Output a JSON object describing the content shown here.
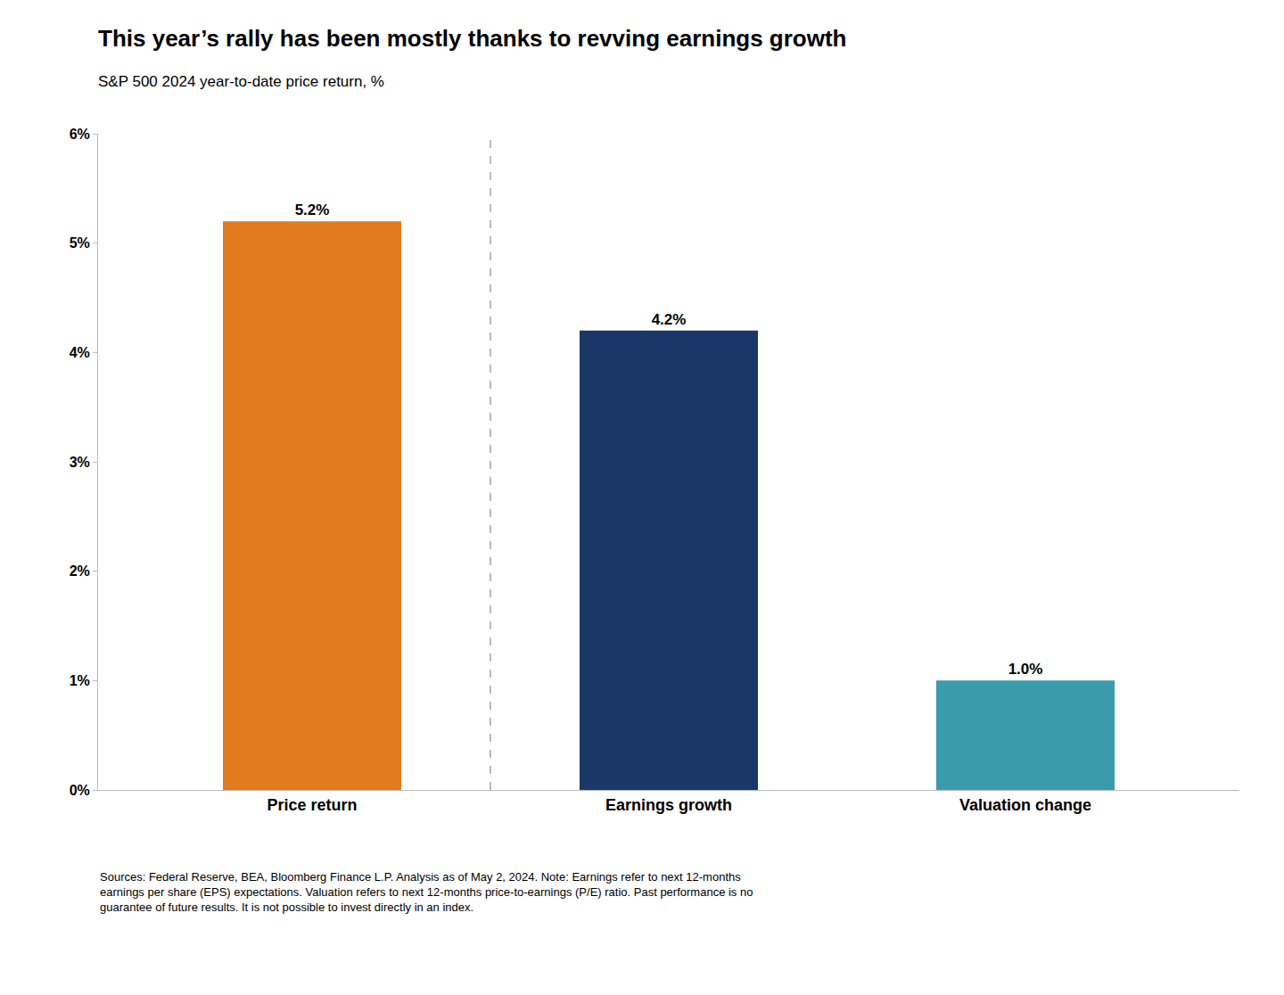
{
  "chart_data": {
    "type": "bar",
    "title": "This year’s rally has been mostly thanks to revving earnings growth",
    "subtitle": "S&P 500 2024 year-to-date price return, %",
    "categories": [
      "Price return",
      "Earnings growth",
      "Valuation change"
    ],
    "values": [
      5.2,
      4.2,
      1.0
    ],
    "value_labels": [
      "5.2%",
      "4.2%",
      "1.0%"
    ],
    "data_labels": true,
    "colors": [
      "#E07B20",
      "#1B3668",
      "#3A9BAD"
    ],
    "ylim": [
      0,
      6
    ],
    "yticks": [
      {
        "value": 0,
        "label": "0%"
      },
      {
        "value": 1,
        "label": "1%"
      },
      {
        "value": 2,
        "label": "2%"
      },
      {
        "value": 3,
        "label": "3%"
      },
      {
        "value": 4,
        "label": "4%"
      },
      {
        "value": 5,
        "label": "5%"
      },
      {
        "value": 6,
        "label": "6%"
      }
    ],
    "grid": false,
    "footnote": [
      "Sources: Federal Reserve, BEA, Bloomberg Finance L.P. Analysis as of May 2, 2024. Note: Earnings refer to next 12-months",
      "earnings per share (EPS) expectations. Valuation refers to next 12-months price-to-earnings (P/E) ratio. Past performance is no",
      "guarantee of future results. It is not possible to invest directly in an index."
    ]
  }
}
